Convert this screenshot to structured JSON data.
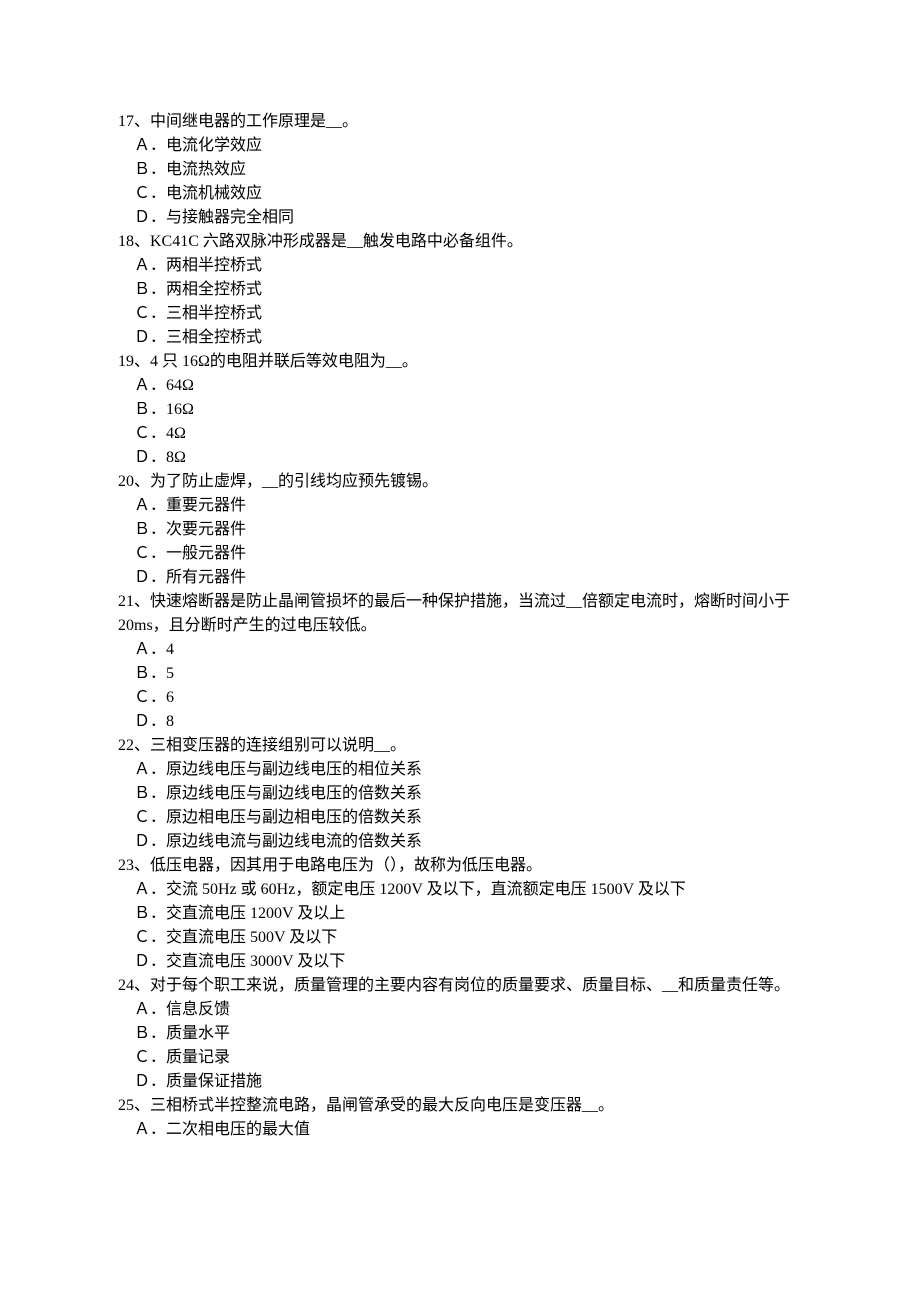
{
  "questions": [
    {
      "stem": "17、中间继电器的工作原理是__。",
      "options": [
        "Ａ．电流化学效应",
        "Ｂ．电流热效应",
        "Ｃ．电流机械效应",
        "Ｄ．与接触器完全相同"
      ]
    },
    {
      "stem": "18、KC41C 六路双脉冲形成器是__触发电路中必备组件。",
      "options": [
        "Ａ．两相半控桥式",
        "Ｂ．两相全控桥式",
        "Ｃ．三相半控桥式",
        "Ｄ．三相全控桥式"
      ]
    },
    {
      "stem": "19、4 只 16Ω的电阻并联后等效电阻为__。",
      "options": [
        "Ａ．64Ω",
        "Ｂ．16Ω",
        "Ｃ．4Ω",
        "Ｄ．8Ω"
      ]
    },
    {
      "stem": "20、为了防止虚焊，__的引线均应预先镀锡。",
      "options": [
        "Ａ．重要元器件",
        "Ｂ．次要元器件",
        "Ｃ．一般元器件",
        "Ｄ．所有元器件"
      ]
    },
    {
      "stem": "21、快速熔断器是防止晶闸管损坏的最后一种保护措施，当流过__倍额定电流时，熔断时间小于 20ms，且分断时产生的过电压较低。",
      "options": [
        "Ａ．4",
        "Ｂ．5",
        "Ｃ．6",
        "Ｄ．8"
      ]
    },
    {
      "stem": "22、三相变压器的连接组别可以说明__。",
      "options": [
        "Ａ．原边线电压与副边线电压的相位关系",
        "Ｂ．原边线电压与副边线电压的倍数关系",
        "Ｃ．原边相电压与副边相电压的倍数关系",
        "Ｄ．原边线电流与副边线电流的倍数关系"
      ]
    },
    {
      "stem": "23、低压电器，因其用于电路电压为（），故称为低压电器。",
      "options": [
        "Ａ．交流 50Hz 或 60Hz，额定电压 1200V 及以下，直流额定电压 1500V 及以下",
        "Ｂ．交直流电压 1200V 及以上",
        "Ｃ．交直流电压 500V 及以下",
        "Ｄ．交直流电压 3000V 及以下"
      ]
    },
    {
      "stem": "24、对于每个职工来说，质量管理的主要内容有岗位的质量要求、质量目标、__和质量责任等。",
      "options": [
        "Ａ．信息反馈",
        "Ｂ．质量水平",
        "Ｃ．质量记录",
        "Ｄ．质量保证措施"
      ]
    },
    {
      "stem": "25、三相桥式半控整流电路，晶闸管承受的最大反向电压是变压器__。",
      "options": [
        "Ａ．二次相电压的最大值"
      ]
    }
  ]
}
